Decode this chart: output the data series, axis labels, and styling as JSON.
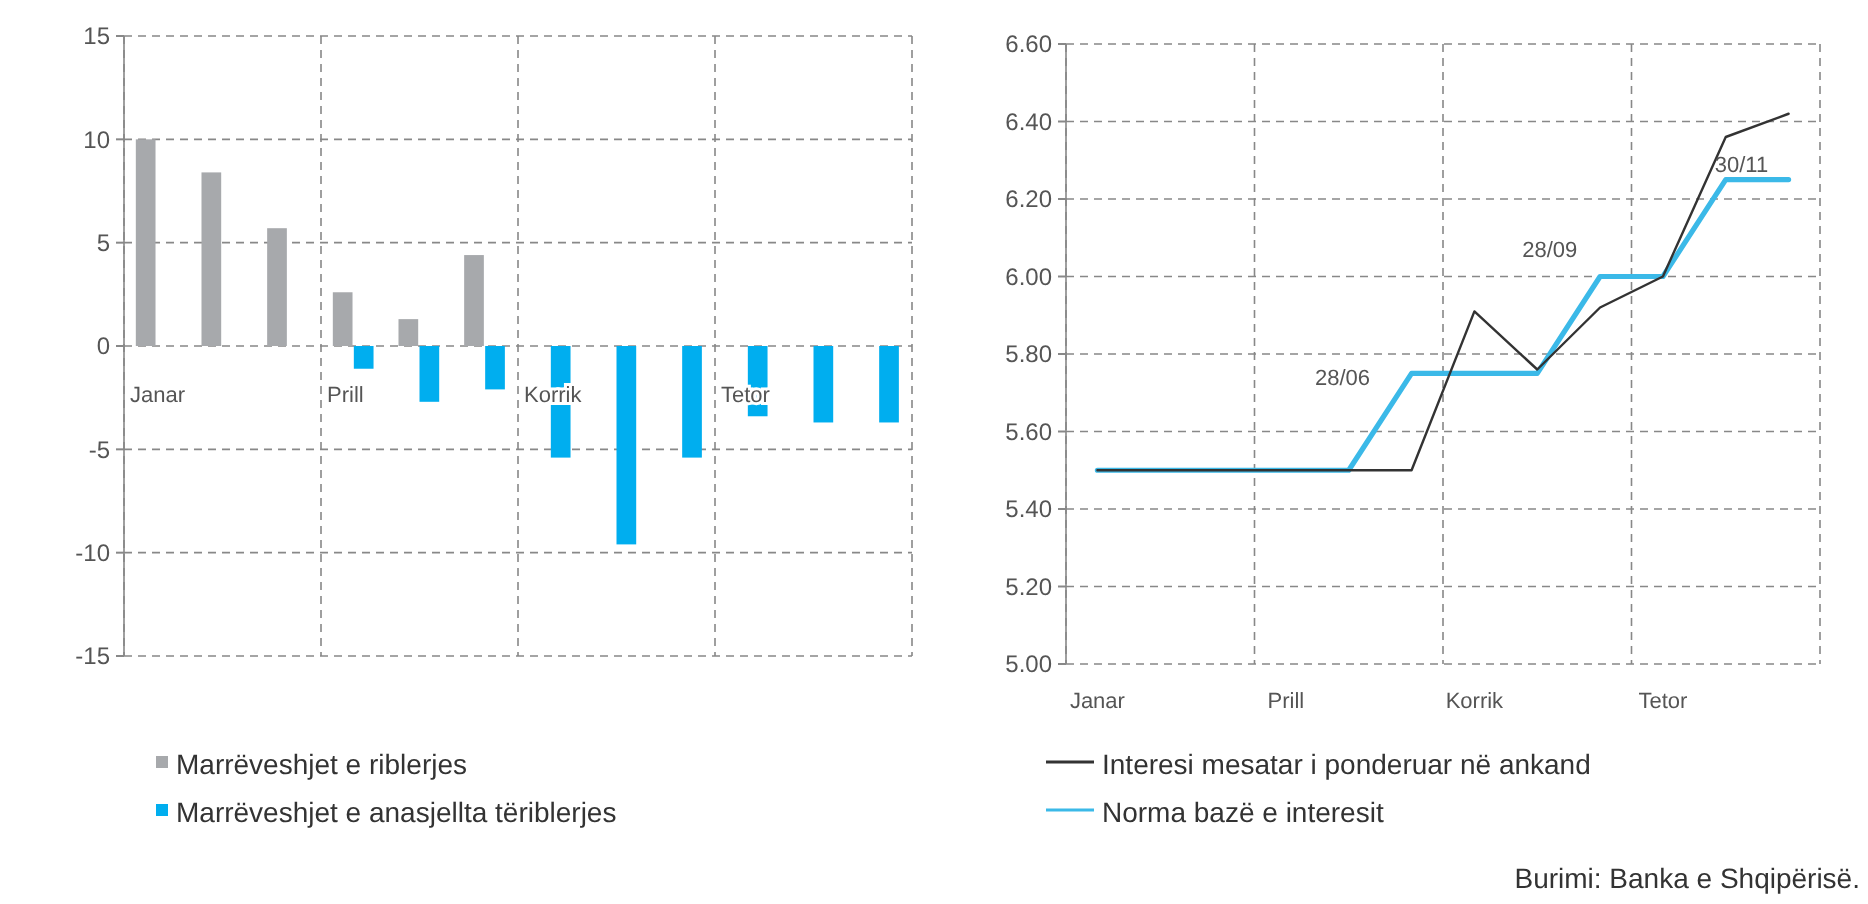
{
  "chart_data": [
    {
      "type": "bar",
      "categories": [
        "Janar",
        null,
        null,
        "Prill",
        null,
        null,
        "Korrik",
        null,
        null,
        "Tetor",
        null,
        null
      ],
      "series": [
        {
          "name": "Marrëveshjet e riblerjes",
          "color": "#a7a9ac",
          "values": [
            10,
            8.4,
            5.7,
            2.6,
            1.3,
            4.4,
            null,
            null,
            null,
            null,
            null,
            null
          ]
        },
        {
          "name": "Marrëveshjet e anasjellta tëriblerjes",
          "color": "#00aeef",
          "values": [
            null,
            null,
            null,
            -1.1,
            -2.7,
            -2.1,
            -5.4,
            -9.6,
            -5.4,
            -3.4,
            -3.7,
            -3.7
          ]
        }
      ],
      "ylim": [
        -15,
        15
      ],
      "yticks": [
        -15,
        -10,
        -5,
        0,
        5,
        10,
        15
      ],
      "grid": true,
      "legend": "bottom"
    },
    {
      "type": "line",
      "categories": [
        "Janar",
        null,
        null,
        "Prill",
        null,
        null,
        "Korrik",
        null,
        null,
        "Tetor",
        null,
        null
      ],
      "series": [
        {
          "name": "Interesi mesatar i ponderuar në ankand",
          "color": "#333333",
          "values": [
            5.5,
            5.5,
            5.5,
            5.5,
            5.5,
            5.5,
            5.91,
            5.76,
            5.92,
            6.0,
            6.36,
            6.42
          ]
        },
        {
          "name": "Norma bazë e interesit",
          "color": "#3bb9e8",
          "values": [
            5.5,
            5.5,
            5.5,
            5.5,
            5.5,
            5.75,
            5.75,
            5.75,
            6.0,
            6.0,
            6.25,
            6.25
          ]
        }
      ],
      "ylim": [
        5.0,
        6.6
      ],
      "yticks": [
        {
          "value": 5.0,
          "label": "5.00"
        },
        {
          "value": 5.2,
          "label": "5.20"
        },
        {
          "value": 5.4,
          "label": "5.40"
        },
        {
          "value": 5.6,
          "label": "5.60"
        },
        {
          "value": 5.8,
          "label": "5.80"
        },
        {
          "value": 6.0,
          "label": "6.00"
        },
        {
          "value": 6.2,
          "label": "6.20"
        },
        {
          "value": 6.4,
          "label": "6.40"
        },
        {
          "value": 6.6,
          "label": "6.60"
        }
      ],
      "grid": true,
      "legend": "bottom",
      "annotations": [
        "28/06",
        "28/09",
        "30/11",
        "Burimi: Banka e Shqipërisë."
      ]
    }
  ]
}
